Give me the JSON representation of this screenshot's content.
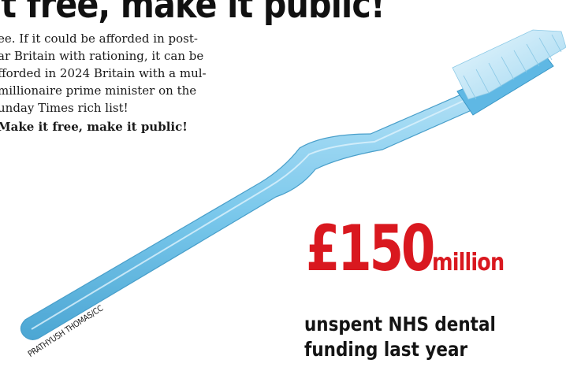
{
  "headline": "it free, make it public!",
  "body": {
    "lines": [
      "ee. If it could be afforded in post-",
      "ar Britain with rationing, it can be",
      "fforded in 2024 Britain with a mul-",
      "millionaire prime minister on the",
      "unday Times rich list!"
    ],
    "closing": "Make it free, make it public!"
  },
  "photo": {
    "subject": "toothbrush",
    "color": "#6ec3ea",
    "credit": "PRATHYUSH THOMAS/CC"
  },
  "stat": {
    "amount": "£150",
    "unit": "million",
    "caption_line1": "unspent NHS dental",
    "caption_line2": "funding last year",
    "accent_color": "#d9181f"
  }
}
